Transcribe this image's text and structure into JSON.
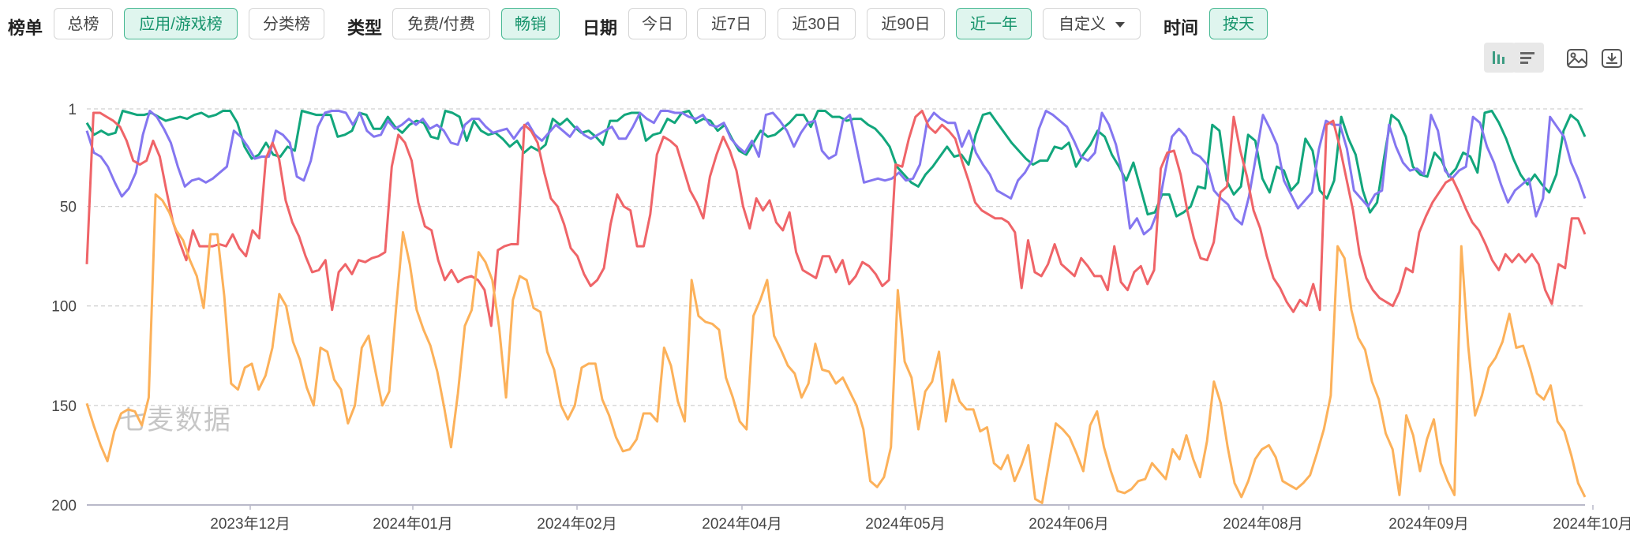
{
  "toolbar": {
    "list_label": "榜单",
    "list_buttons": [
      {
        "label": "总榜",
        "active": false
      },
      {
        "label": "应用/游戏榜",
        "active": true
      },
      {
        "label": "分类榜",
        "active": false
      }
    ],
    "type_label": "类型",
    "type_buttons": [
      {
        "label": "免费/付费",
        "active": false
      },
      {
        "label": "畅销",
        "active": true
      }
    ],
    "date_label": "日期",
    "date_buttons": [
      {
        "label": "今日",
        "active": false
      },
      {
        "label": "近7日",
        "active": false
      },
      {
        "label": "近30日",
        "active": false
      },
      {
        "label": "近90日",
        "active": false
      },
      {
        "label": "近一年",
        "active": true
      }
    ],
    "custom_label": "自定义",
    "time_label": "时间",
    "time_button": "按天"
  },
  "icons": [
    "bar-chart-icon",
    "list-chart-icon",
    "image-icon",
    "download-icon"
  ],
  "watermark": "七麦数据",
  "colors": {
    "green": "#12a67c",
    "purple": "#8476f0",
    "red": "#ef6468",
    "orange": "#fcb15a",
    "accent": "#17946c"
  },
  "chart_data": {
    "type": "line",
    "y_reversed": true,
    "ylim": [
      1,
      200
    ],
    "y_ticks": [
      "1",
      "50",
      "100",
      "150",
      "200"
    ],
    "x_ticks": [
      "2023年12月",
      "2024年01月",
      "2024年02月",
      "2024年04月",
      "2024年05月",
      "2024年06月",
      "2024年08月",
      "2024年09月",
      "2024年10月"
    ],
    "grid": true,
    "legend": "none",
    "series": [
      {
        "color": "#12a67c",
        "values": [
          8,
          14,
          12,
          14,
          13,
          2,
          3,
          4,
          4,
          3,
          5,
          7,
          6,
          5,
          6,
          4,
          3,
          5,
          4,
          2,
          2,
          8,
          20,
          26,
          24,
          18,
          24,
          25,
          20,
          22,
          2,
          3,
          4,
          4,
          4,
          15,
          14,
          12,
          3,
          4,
          11,
          11,
          5,
          10,
          13,
          9,
          7,
          8,
          15,
          16,
          2,
          3,
          5,
          17,
          7,
          12,
          14,
          13,
          16,
          20,
          17,
          23,
          20,
          22,
          19,
          6,
          9,
          6,
          10,
          13,
          12,
          15,
          19,
          7,
          7,
          4,
          3,
          3,
          17,
          14,
          13,
          6,
          8,
          3,
          2,
          8,
          6,
          7,
          12,
          9,
          16,
          22,
          24,
          18,
          12,
          15,
          14,
          11,
          8,
          4,
          4,
          10,
          2,
          2,
          5,
          5,
          7,
          6,
          6,
          9,
          11,
          15,
          20,
          30,
          34,
          38,
          40,
          34,
          30,
          25,
          20,
          25,
          24,
          29,
          14,
          4,
          3,
          8,
          13,
          18,
          22,
          26,
          29,
          27,
          27,
          20,
          21,
          18,
          30,
          24,
          19,
          12,
          15,
          24,
          30,
          37,
          28,
          41,
          54,
          53,
          44,
          44,
          55,
          53,
          50,
          40,
          41,
          9,
          12,
          37,
          44,
          40,
          14,
          17,
          36,
          43,
          30,
          32,
          42,
          38,
          16,
          22,
          42,
          46,
          37,
          5,
          16,
          24,
          42,
          53,
          48,
          25,
          4,
          7,
          15,
          30,
          34,
          35,
          23,
          27,
          35,
          31,
          23,
          25,
          33,
          3,
          2,
          8,
          16,
          26,
          34,
          39,
          34,
          39,
          43,
          34,
          12,
          4,
          7,
          15
        ]
      },
      {
        "color": "#8476f0",
        "values": [
          12,
          23,
          25,
          30,
          38,
          45,
          41,
          33,
          14,
          2,
          5,
          11,
          18,
          30,
          40,
          37,
          36,
          38,
          36,
          33,
          30,
          12,
          15,
          20,
          26,
          25,
          25,
          12,
          14,
          18,
          35,
          37,
          27,
          10,
          3,
          2,
          2,
          3,
          9,
          3,
          12,
          15,
          14,
          7,
          11,
          9,
          6,
          9,
          6,
          11,
          9,
          12,
          18,
          19,
          9,
          6,
          6,
          10,
          13,
          12,
          11,
          16,
          11,
          8,
          14,
          17,
          13,
          9,
          12,
          15,
          10,
          14,
          16,
          14,
          12,
          10,
          16,
          16,
          10,
          3,
          6,
          8,
          2,
          2,
          3,
          3,
          5,
          6,
          4,
          9,
          10,
          8,
          16,
          20,
          23,
          17,
          25,
          4,
          3,
          7,
          12,
          20,
          13,
          8,
          7,
          22,
          26,
          24,
          7,
          4,
          21,
          38,
          37,
          36,
          37,
          36,
          33,
          37,
          36,
          29,
          8,
          3,
          6,
          8,
          8,
          20,
          12,
          23,
          29,
          34,
          42,
          44,
          46,
          37,
          33,
          27,
          11,
          2,
          4,
          7,
          10,
          17,
          25,
          27,
          23,
          3,
          9,
          19,
          35,
          61,
          56,
          64,
          61,
          52,
          33,
          15,
          11,
          15,
          23,
          25,
          29,
          42,
          46,
          49,
          56,
          59,
          45,
          25,
          4,
          11,
          19,
          37,
          44,
          51,
          47,
          43,
          21,
          7,
          9,
          9,
          21,
          42,
          46,
          50,
          44,
          42,
          9,
          20,
          28,
          32,
          31,
          34,
          4,
          12,
          32,
          36,
          32,
          30,
          5,
          8,
          20,
          28,
          39,
          48,
          42,
          39,
          36,
          55,
          46,
          5,
          10,
          15,
          28,
          36,
          46
        ]
      },
      {
        "color": "#ef6468",
        "values": [
          79,
          3,
          3,
          5,
          7,
          10,
          17,
          27,
          29,
          27,
          17,
          25,
          42,
          58,
          68,
          77,
          62,
          70,
          70,
          70,
          69,
          70,
          64,
          71,
          75,
          62,
          66,
          26,
          18,
          26,
          47,
          58,
          65,
          75,
          83,
          82,
          77,
          102,
          83,
          79,
          84,
          77,
          78,
          76,
          75,
          73,
          30,
          14,
          18,
          27,
          48,
          60,
          62,
          77,
          87,
          82,
          88,
          86,
          85,
          87,
          92,
          110,
          72,
          70,
          69,
          69,
          9,
          12,
          18,
          33,
          46,
          50,
          59,
          71,
          75,
          84,
          90,
          87,
          81,
          59,
          44,
          50,
          52,
          70,
          70,
          54,
          24,
          15,
          17,
          20,
          31,
          42,
          48,
          56,
          35,
          24,
          15,
          22,
          32,
          50,
          61,
          46,
          52,
          47,
          58,
          62,
          53,
          73,
          82,
          84,
          86,
          75,
          75,
          83,
          77,
          89,
          85,
          78,
          80,
          84,
          90,
          87,
          29,
          30,
          16,
          5,
          2,
          10,
          13,
          9,
          12,
          16,
          27,
          37,
          48,
          52,
          54,
          56,
          56,
          58,
          63,
          91,
          67,
          83,
          85,
          79,
          69,
          79,
          82,
          85,
          76,
          80,
          85,
          85,
          92,
          70,
          88,
          92,
          83,
          80,
          89,
          82,
          31,
          23,
          22,
          34,
          52,
          66,
          76,
          77,
          68,
          43,
          40,
          5,
          22,
          35,
          52,
          61,
          75,
          86,
          91,
          98,
          103,
          97,
          100,
          89,
          102,
          9,
          7,
          20,
          36,
          52,
          74,
          86,
          92,
          96,
          98,
          100,
          93,
          81,
          83,
          63,
          55,
          48,
          43,
          38,
          36,
          43,
          51,
          58,
          62,
          69,
          77,
          82,
          74,
          78,
          74,
          78,
          74,
          79,
          92,
          99,
          79,
          81,
          56,
          56,
          64
        ]
      },
      {
        "color": "#fcb15a",
        "values": [
          149,
          160,
          170,
          178,
          163,
          154,
          152,
          153,
          160,
          146,
          44,
          47,
          53,
          62,
          67,
          77,
          85,
          101,
          64,
          64,
          95,
          139,
          142,
          131,
          129,
          142,
          135,
          121,
          94,
          100,
          118,
          127,
          141,
          150,
          121,
          123,
          137,
          142,
          159,
          150,
          121,
          115,
          133,
          150,
          143,
          101,
          63,
          79,
          102,
          112,
          120,
          133,
          151,
          171,
          144,
          110,
          102,
          73,
          78,
          87,
          111,
          146,
          97,
          85,
          87,
          101,
          103,
          123,
          132,
          150,
          157,
          150,
          131,
          129,
          129,
          147,
          155,
          166,
          173,
          172,
          167,
          154,
          154,
          158,
          121,
          130,
          148,
          158,
          87,
          105,
          108,
          109,
          112,
          136,
          146,
          158,
          162,
          105,
          97,
          87,
          115,
          122,
          130,
          134,
          146,
          139,
          119,
          132,
          133,
          139,
          136,
          143,
          150,
          162,
          188,
          191,
          186,
          171,
          92,
          128,
          136,
          162,
          143,
          138,
          123,
          158,
          137,
          148,
          152,
          152,
          163,
          161,
          179,
          182,
          175,
          188,
          180,
          170,
          197,
          199,
          179,
          159,
          162,
          166,
          174,
          183,
          160,
          153,
          171,
          183,
          193,
          194,
          192,
          188,
          187,
          179,
          183,
          187,
          172,
          177,
          165,
          177,
          186,
          168,
          138,
          149,
          171,
          189,
          196,
          188,
          177,
          172,
          170,
          176,
          188,
          190,
          192,
          189,
          185,
          174,
          162,
          145,
          70,
          76,
          102,
          116,
          122,
          138,
          147,
          164,
          172,
          195,
          155,
          165,
          183,
          167,
          157,
          179,
          188,
          195,
          70,
          120,
          155,
          145,
          131,
          126,
          118,
          104,
          121,
          120,
          131,
          144,
          147,
          140,
          158,
          163,
          175,
          189,
          196
        ]
      }
    ]
  }
}
